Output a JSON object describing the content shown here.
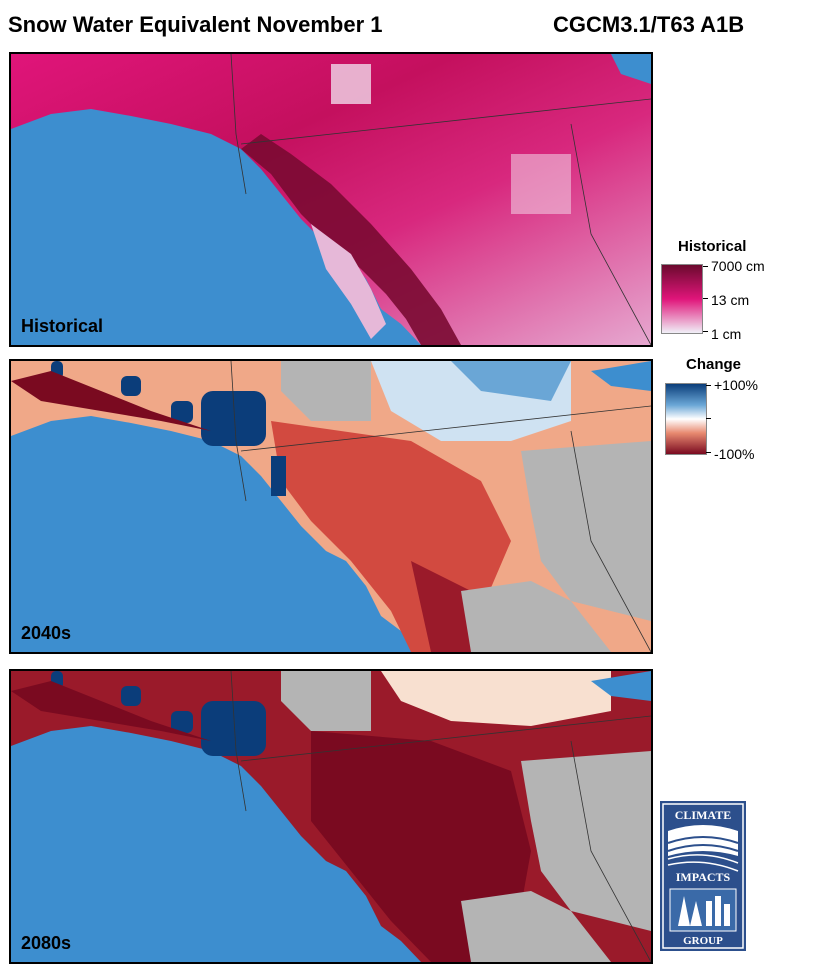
{
  "header": {
    "title": "Snow Water Equivalent November 1",
    "model": "CGCM3.1/T63 A1B"
  },
  "panels": [
    {
      "label": "Historical"
    },
    {
      "label": "2040s"
    },
    {
      "label": "2080s"
    }
  ],
  "legend_historical": {
    "title": "Historical",
    "ticks": [
      "7000 cm",
      "13 cm",
      "1 cm"
    ],
    "colors": [
      "#6b0a2e",
      "#e0157a",
      "#f0f0f8"
    ]
  },
  "legend_change": {
    "title": "Change",
    "ticks": [
      "+100%",
      "-100%"
    ],
    "colors": [
      "#0b3d7a",
      "#ffffff",
      "#7a0a20"
    ]
  },
  "colors": {
    "ocean": "#3d8ecf",
    "no_data": "#b4b4b4"
  },
  "logo": {
    "top": "CLIMATE",
    "middle": "IMPACTS",
    "bottom": "GROUP"
  }
}
